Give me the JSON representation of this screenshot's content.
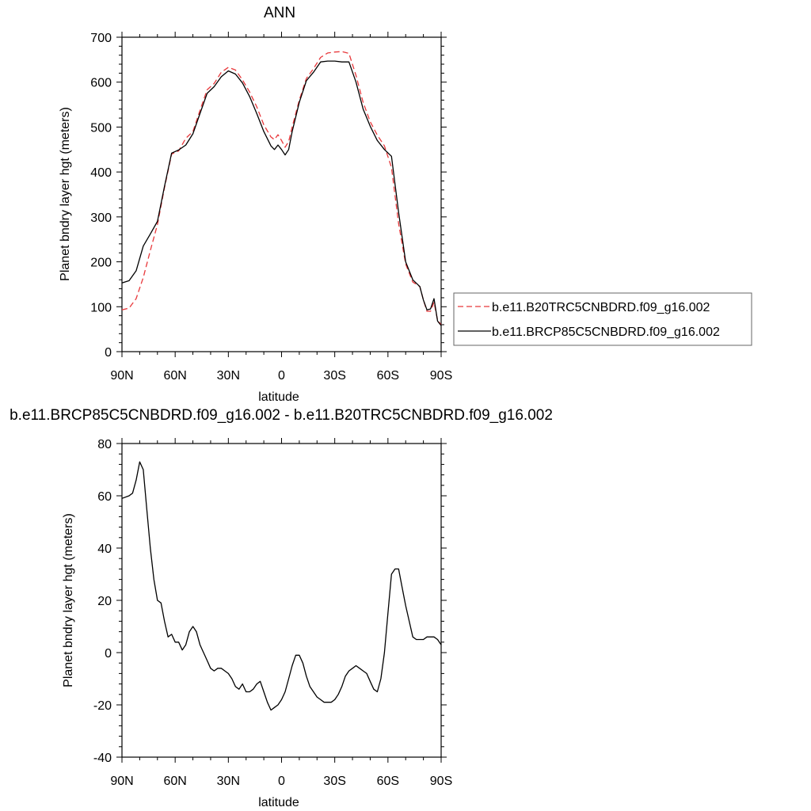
{
  "chart_data": [
    {
      "type": "line",
      "title": "ANN",
      "xlabel": "latitude",
      "ylabel": "Planet bndry layer hgt (meters)",
      "x_tick_labels": [
        "90N",
        "60N",
        "30N",
        "0",
        "30S",
        "60S",
        "90S"
      ],
      "x_ticks": [
        90,
        60,
        30,
        0,
        -30,
        -60,
        -90
      ],
      "xlim": [
        90,
        -90
      ],
      "ylim": [
        0,
        700
      ],
      "y_ticks": [
        0,
        100,
        200,
        300,
        400,
        500,
        600,
        700
      ],
      "legend_position": "right",
      "series": [
        {
          "name": "b.e11.B20TRC5CNBDRD.f09_g16.002",
          "color": "#e8383b",
          "dash": "dashed",
          "x": [
            90,
            86,
            82,
            78,
            74,
            70,
            66,
            62,
            58,
            54,
            50,
            46,
            42,
            38,
            34,
            30,
            26,
            22,
            18,
            14,
            10,
            6,
            4,
            2,
            0,
            -2,
            -4,
            -6,
            -10,
            -14,
            -18,
            -22,
            -26,
            -30,
            -34,
            -38,
            -42,
            -46,
            -50,
            -54,
            -58,
            -62,
            -66,
            -70,
            -74,
            -78,
            -80,
            -82,
            -84,
            -86,
            -88,
            -90
          ],
          "y": [
            93,
            97,
            118,
            165,
            225,
            283,
            365,
            440,
            447,
            475,
            490,
            537,
            583,
            597,
            622,
            633,
            627,
            605,
            578,
            545,
            505,
            478,
            472,
            483,
            470,
            455,
            468,
            500,
            560,
            608,
            630,
            655,
            665,
            667,
            668,
            664,
            615,
            555,
            512,
            482,
            458,
            410,
            285,
            195,
            155,
            145,
            115,
            90,
            90,
            110,
            70,
            60
          ]
        },
        {
          "name": "b.e11.BRCP85C5CNBDRD.f09_g16.002",
          "color": "#000000",
          "dash": "solid",
          "x": [
            90,
            86,
            82,
            78,
            74,
            70,
            66,
            62,
            58,
            54,
            50,
            46,
            42,
            38,
            34,
            30,
            26,
            22,
            18,
            14,
            10,
            6,
            4,
            2,
            0,
            -2,
            -4,
            -6,
            -10,
            -14,
            -18,
            -22,
            -26,
            -30,
            -34,
            -38,
            -42,
            -46,
            -50,
            -54,
            -58,
            -62,
            -66,
            -70,
            -74,
            -78,
            -80,
            -82,
            -84,
            -86,
            -88,
            -90
          ],
          "y": [
            153,
            158,
            180,
            235,
            262,
            290,
            368,
            442,
            449,
            460,
            485,
            530,
            575,
            590,
            612,
            625,
            618,
            598,
            568,
            530,
            490,
            458,
            450,
            460,
            450,
            438,
            450,
            490,
            555,
            603,
            622,
            645,
            647,
            647,
            645,
            645,
            600,
            540,
            502,
            470,
            450,
            435,
            310,
            200,
            160,
            145,
            115,
            93,
            95,
            118,
            68,
            58
          ]
        }
      ]
    },
    {
      "type": "line",
      "title": "b.e11.BRCP85C5CNBDRD.f09_g16.002 - b.e11.B20TRC5CNBDRD.f09_g16.002",
      "xlabel": "latitude",
      "ylabel": "Planet bndry layer hgt (meters)",
      "x_tick_labels": [
        "90N",
        "60N",
        "30N",
        "0",
        "30S",
        "60S",
        "90S"
      ],
      "x_ticks": [
        90,
        60,
        30,
        0,
        -30,
        -60,
        -90
      ],
      "xlim": [
        90,
        -90
      ],
      "ylim": [
        -40,
        80
      ],
      "y_ticks": [
        -40,
        -20,
        0,
        20,
        40,
        60,
        80
      ],
      "series": [
        {
          "color": "#000000",
          "dash": "solid",
          "x": [
            90,
            86,
            84,
            82,
            80,
            78,
            76,
            74,
            72,
            70,
            68,
            66,
            64,
            62,
            60,
            58,
            56,
            54,
            52,
            50,
            48,
            46,
            44,
            42,
            40,
            38,
            36,
            34,
            32,
            30,
            28,
            26,
            24,
            22,
            20,
            18,
            16,
            14,
            12,
            10,
            8,
            6,
            4,
            2,
            0,
            -2,
            -4,
            -6,
            -8,
            -10,
            -12,
            -14,
            -16,
            -18,
            -20,
            -22,
            -24,
            -26,
            -28,
            -30,
            -32,
            -34,
            -36,
            -38,
            -40,
            -42,
            -44,
            -46,
            -48,
            -50,
            -52,
            -54,
            -56,
            -58,
            -60,
            -62,
            -64,
            -66,
            -68,
            -70,
            -72,
            -74,
            -76,
            -78,
            -80,
            -82,
            -84,
            -86,
            -88,
            -90
          ],
          "y": [
            59,
            60,
            61,
            66,
            73,
            70,
            55,
            40,
            28,
            20,
            19,
            12,
            6,
            7,
            4,
            4,
            1,
            3,
            8,
            10,
            8,
            3,
            0,
            -3,
            -6,
            -7,
            -6,
            -6,
            -7,
            -8,
            -10,
            -13,
            -14,
            -12,
            -15,
            -15,
            -14,
            -12,
            -11,
            -15,
            -19,
            -22,
            -21,
            -20,
            -18,
            -15,
            -10,
            -5,
            -1,
            -1,
            -4,
            -9,
            -13,
            -15,
            -17,
            -18,
            -19,
            -19,
            -19,
            -18,
            -16,
            -13,
            -9,
            -7,
            -6,
            -5,
            -6,
            -7,
            -8,
            -11,
            -14,
            -15,
            -10,
            0,
            15,
            30,
            32,
            32,
            25,
            18,
            12,
            6,
            5,
            5,
            5,
            6,
            6,
            6,
            5,
            3
          ]
        }
      ]
    }
  ]
}
